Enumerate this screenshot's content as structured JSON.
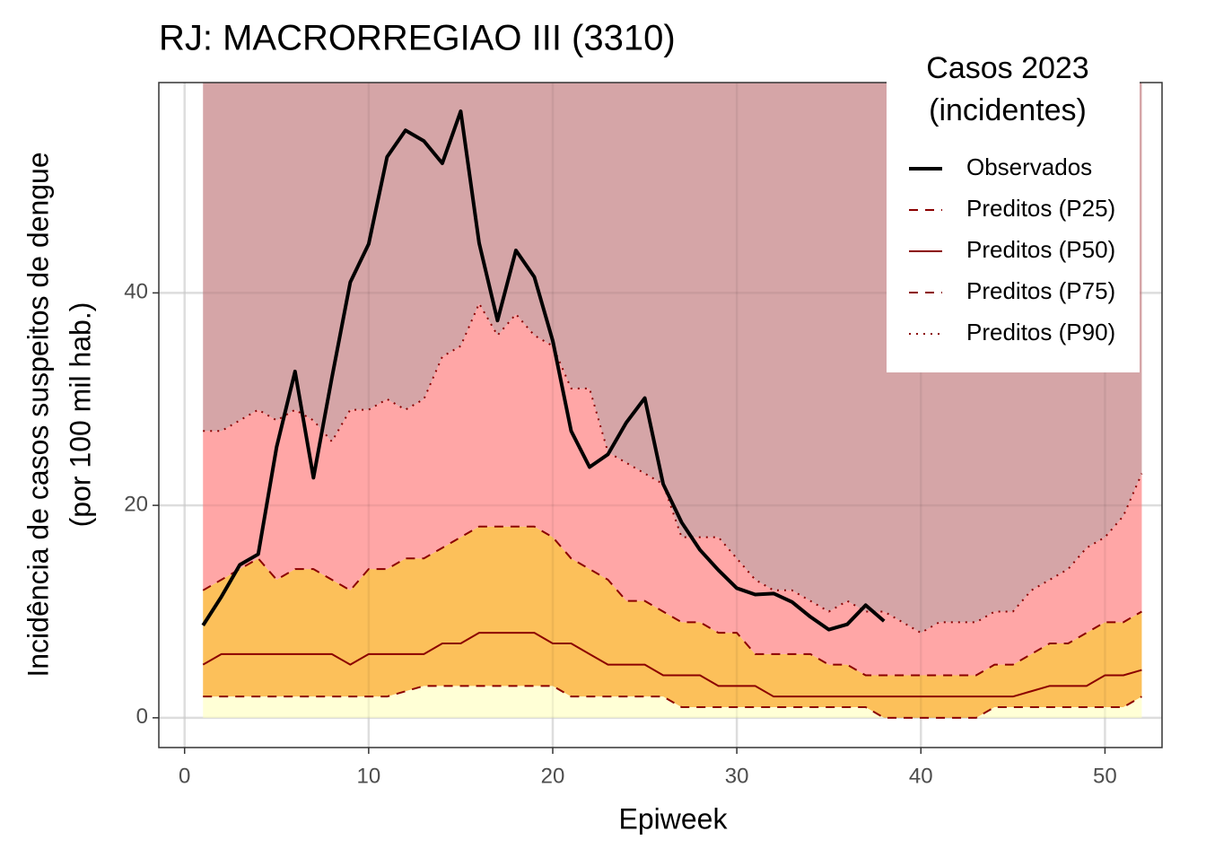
{
  "chart_data": {
    "type": "line",
    "title": "RJ: MACRORREGIAO III (3310)",
    "xlabel": "Epiweek",
    "ylabel": [
      "Incidência de casos suspeitos de dengue",
      "(por 100 mil hab.)"
    ],
    "legend_title": [
      "Casos 2023",
      "(incidentes)"
    ],
    "legend": "top-right",
    "grid": true,
    "xlim": [
      -1.4,
      53.1
    ],
    "xticks": [
      0,
      10,
      20,
      30,
      40,
      50
    ],
    "ylim": [
      -2.8,
      59.8
    ],
    "yticks": [
      0,
      20,
      40
    ],
    "band_colors": [
      "#ffffd6",
      "#fcc05a",
      "#ffa6a6",
      "#d5a5a7"
    ],
    "series": [
      {
        "name": "Observados",
        "color": "#000000",
        "dash": "solid",
        "width": 4,
        "x": [
          1,
          2,
          3,
          4,
          5,
          6,
          7,
          8,
          9,
          10,
          11,
          12,
          13,
          14,
          15,
          16,
          17,
          18,
          19,
          20,
          21,
          22,
          23,
          24,
          25,
          26,
          27,
          28,
          29,
          30,
          31,
          32,
          33,
          34,
          35,
          36,
          37,
          38
        ],
        "values": [
          8.7,
          11.4,
          14.4,
          15.4,
          25.5,
          32.6,
          22.6,
          32,
          41,
          44.6,
          52.8,
          55.3,
          54.3,
          52.2,
          57.1,
          44.7,
          37.4,
          44,
          41.5,
          35.5,
          27,
          23.6,
          24.8,
          27.8,
          30.1,
          22,
          18.4,
          15.8,
          13.9,
          12.2,
          11.6,
          11.7,
          10.9,
          9.5,
          8.3,
          8.8,
          10.6,
          9.1
        ]
      },
      {
        "name": "Preditos (P25)",
        "color": "#8b0000",
        "dash": "dashed",
        "width": 2,
        "x": [
          1,
          2,
          3,
          4,
          5,
          6,
          7,
          8,
          9,
          10,
          11,
          12,
          13,
          14,
          15,
          16,
          17,
          18,
          19,
          20,
          21,
          22,
          23,
          24,
          25,
          26,
          27,
          28,
          29,
          30,
          31,
          32,
          33,
          34,
          35,
          36,
          37,
          38,
          39,
          40,
          41,
          42,
          43,
          44,
          45,
          46,
          47,
          48,
          49,
          50,
          51,
          52
        ],
        "values": [
          2,
          2,
          2,
          2,
          2,
          2,
          2,
          2,
          2,
          2,
          2,
          2.5,
          3,
          3,
          3,
          3,
          3,
          3,
          3,
          3,
          2,
          2,
          2,
          2,
          2,
          2,
          1,
          1,
          1,
          1,
          1,
          1,
          1,
          1,
          1,
          1,
          1,
          0,
          0,
          0,
          0,
          0,
          0,
          1,
          1,
          1,
          1,
          1,
          1,
          1,
          1,
          2
        ]
      },
      {
        "name": "Preditos (P50)",
        "color": "#8b0000",
        "dash": "solid",
        "width": 2,
        "x": [
          1,
          2,
          3,
          4,
          5,
          6,
          7,
          8,
          9,
          10,
          11,
          12,
          13,
          14,
          15,
          16,
          17,
          18,
          19,
          20,
          21,
          22,
          23,
          24,
          25,
          26,
          27,
          28,
          29,
          30,
          31,
          32,
          33,
          34,
          35,
          36,
          37,
          38,
          39,
          40,
          41,
          42,
          43,
          44,
          45,
          46,
          47,
          48,
          49,
          50,
          51,
          52
        ],
        "values": [
          5,
          6,
          6,
          6,
          6,
          6,
          6,
          6,
          5,
          6,
          6,
          6,
          6,
          7,
          7,
          8,
          8,
          8,
          8,
          7,
          7,
          6,
          5,
          5,
          5,
          4,
          4,
          4,
          3,
          3,
          3,
          2,
          2,
          2,
          2,
          2,
          2,
          2,
          2,
          2,
          2,
          2,
          2,
          2,
          2,
          2.5,
          3,
          3,
          3,
          4,
          4,
          4.5
        ]
      },
      {
        "name": "Preditos (P75)",
        "color": "#8b0000",
        "dash": "dashed",
        "width": 2,
        "x": [
          1,
          2,
          3,
          4,
          5,
          6,
          7,
          8,
          9,
          10,
          11,
          12,
          13,
          14,
          15,
          16,
          17,
          18,
          19,
          20,
          21,
          22,
          23,
          24,
          25,
          26,
          27,
          28,
          29,
          30,
          31,
          32,
          33,
          34,
          35,
          36,
          37,
          38,
          39,
          40,
          41,
          42,
          43,
          44,
          45,
          46,
          47,
          48,
          49,
          50,
          51,
          52
        ],
        "values": [
          12,
          13,
          14,
          15,
          13,
          14,
          14,
          13,
          12,
          14,
          14,
          15,
          15,
          16,
          17,
          18,
          18,
          18,
          18,
          17,
          15,
          14,
          13,
          11,
          11,
          10,
          9,
          9,
          8,
          8,
          6,
          6,
          6,
          6,
          5,
          5,
          4,
          4,
          4,
          4,
          4,
          4,
          4,
          5,
          5,
          6,
          7,
          7,
          8,
          9,
          9,
          10
        ]
      },
      {
        "name": "Preditos (P90)",
        "color": "#8b0000",
        "dash": "dotted",
        "width": 2,
        "x": [
          1,
          2,
          3,
          4,
          5,
          6,
          7,
          8,
          9,
          10,
          11,
          12,
          13,
          14,
          15,
          16,
          17,
          18,
          19,
          20,
          21,
          22,
          23,
          24,
          25,
          26,
          27,
          28,
          29,
          30,
          31,
          32,
          33,
          34,
          35,
          36,
          37,
          38,
          39,
          40,
          41,
          42,
          43,
          44,
          45,
          46,
          47,
          48,
          49,
          50,
          51,
          52
        ],
        "values": [
          27,
          27,
          28,
          29,
          28,
          29,
          28,
          26,
          29,
          29,
          30,
          29,
          30,
          34,
          35,
          39,
          36,
          38,
          36,
          35,
          31,
          31,
          25,
          24,
          23,
          22,
          17,
          17,
          17,
          15,
          13,
          12,
          12,
          11,
          10,
          11,
          10,
          10,
          9,
          8,
          9,
          9,
          9,
          10,
          10,
          12,
          13,
          14,
          16,
          17,
          19,
          23
        ]
      }
    ]
  }
}
